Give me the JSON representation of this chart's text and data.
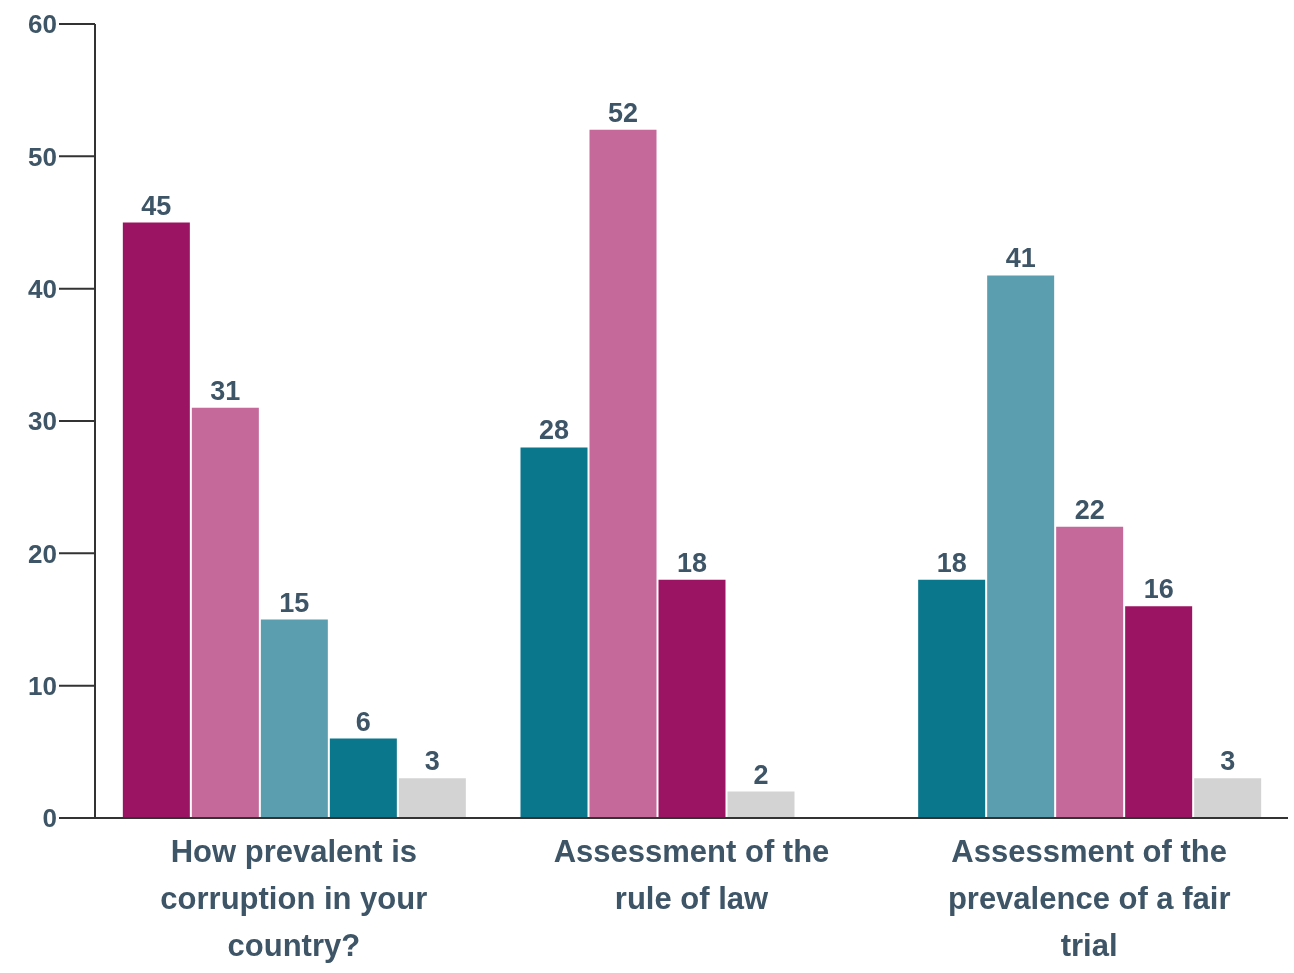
{
  "chart_data": {
    "type": "bar",
    "categories": [
      "How prevalent is corruption in your country?",
      "Assessment of the rule of law",
      "Assessment of the prevalence of a fair trial"
    ],
    "series": [
      {
        "colors": [
          "#9b1463",
          "#0b778c",
          "#0b778c"
        ],
        "values": [
          45,
          28,
          18
        ]
      },
      {
        "colors": [
          "#c4699a",
          "#c4699a",
          "#5b9eb0"
        ],
        "values": [
          31,
          52,
          41
        ]
      },
      {
        "colors": [
          "#5b9eb0",
          "#9b1463",
          "#c4699a"
        ],
        "values": [
          15,
          18,
          22
        ]
      },
      {
        "colors": [
          "#0b778c",
          "#d3d3d3",
          "#9b1463"
        ],
        "values": [
          6,
          2,
          16
        ]
      },
      {
        "colors": [
          "#d3d3d3",
          null,
          "#d3d3d3"
        ],
        "values": [
          3,
          null,
          3
        ]
      }
    ],
    "ylim": [
      0,
      60
    ],
    "yticks": [
      0,
      10,
      20,
      30,
      40,
      50,
      60
    ],
    "grid": false,
    "legend": false,
    "data_labels": true
  }
}
